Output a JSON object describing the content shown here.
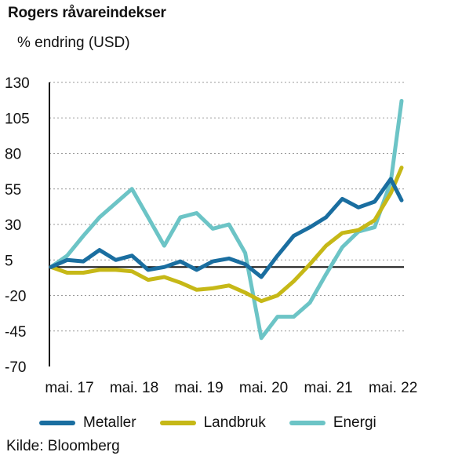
{
  "header": {
    "title": "Rogers råvareindekser",
    "unit": "% endring (USD)"
  },
  "footer": {
    "source": "Kilde: Bloomberg"
  },
  "chart_data": {
    "type": "line",
    "title": "Rogers råvareindekser",
    "ylabel": "% endring (USD)",
    "xlabel": "",
    "ylim": [
      -70,
      130
    ],
    "yticks": [
      130,
      105,
      80,
      55,
      30,
      5,
      -20,
      -45,
      -70
    ],
    "xticks": [
      "mai. 17",
      "mai. 18",
      "mai. 19",
      "mai. 20",
      "mai. 21",
      "mai. 22"
    ],
    "grid": true,
    "legend": "bottom",
    "baseline": 0,
    "x": [
      "2017-01",
      "2017-04",
      "2017-07",
      "2017-10",
      "2018-01",
      "2018-04",
      "2018-07",
      "2018-10",
      "2019-01",
      "2019-04",
      "2019-07",
      "2019-10",
      "2020-01",
      "2020-04",
      "2020-07",
      "2020-10",
      "2021-01",
      "2021-04",
      "2021-07",
      "2021-10",
      "2022-01",
      "2022-04",
      "2022-06"
    ],
    "series": [
      {
        "name": "Metaller",
        "color": "#1a6ea0",
        "values": [
          0,
          5,
          4,
          12,
          5,
          8,
          -2,
          0,
          4,
          -2,
          4,
          6,
          2,
          -7,
          8,
          22,
          28,
          35,
          48,
          42,
          46,
          62,
          47
        ]
      },
      {
        "name": "Landbruk",
        "color": "#c6b817",
        "values": [
          0,
          -4,
          -4,
          -2,
          -2,
          -3,
          -9,
          -7,
          -11,
          -16,
          -15,
          -13,
          -18,
          -24,
          -20,
          -10,
          2,
          15,
          24,
          26,
          33,
          52,
          70
        ]
      },
      {
        "name": "Energi",
        "color": "#6cc4c6",
        "values": [
          0,
          8,
          22,
          35,
          45,
          55,
          35,
          15,
          35,
          38,
          27,
          30,
          10,
          -50,
          -35,
          -35,
          -25,
          -5,
          14,
          25,
          28,
          60,
          117
        ]
      }
    ]
  }
}
